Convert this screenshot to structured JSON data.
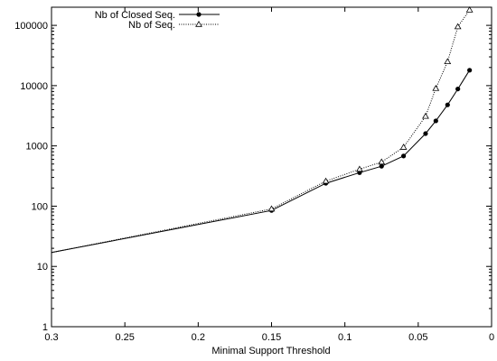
{
  "chart_data": {
    "type": "line",
    "title": "",
    "xlabel": "Minimal Support Threshold",
    "ylabel": "",
    "xlim": [
      0.3,
      0
    ],
    "ylim": [
      1,
      200000
    ],
    "yscale": "log",
    "x_ticks": [
      0.3,
      0.25,
      0.2,
      0.15,
      0.1,
      0.05,
      0
    ],
    "x_tick_labels": [
      "0.3",
      "0.25",
      "0.2",
      "0.15",
      "0.1",
      "0.05",
      "0"
    ],
    "y_ticks": [
      1,
      10,
      100,
      1000,
      10000,
      100000
    ],
    "y_tick_labels": [
      "1",
      "10",
      "100",
      "1000",
      "10000",
      "100000"
    ],
    "grid": false,
    "legend_position": "top-left",
    "series": [
      {
        "name": "Nb of Closed Seq.",
        "style": "solid",
        "marker": "filled-circle",
        "color": "#000000",
        "x": [
          0.3,
          0.15,
          0.113,
          0.09,
          0.075,
          0.06,
          0.045,
          0.038,
          0.03,
          0.023,
          0.015
        ],
        "y": [
          17,
          85,
          240,
          360,
          460,
          680,
          1600,
          2600,
          4800,
          8800,
          18000
        ]
      },
      {
        "name": "Nb of Seq.",
        "style": "dotted",
        "marker": "open-triangle",
        "color": "#000000",
        "x": [
          0.3,
          0.15,
          0.113,
          0.09,
          0.075,
          0.06,
          0.045,
          0.038,
          0.03,
          0.023,
          0.015
        ],
        "y": [
          17,
          90,
          260,
          410,
          540,
          950,
          3100,
          9000,
          25000,
          95000,
          180000
        ]
      }
    ]
  }
}
